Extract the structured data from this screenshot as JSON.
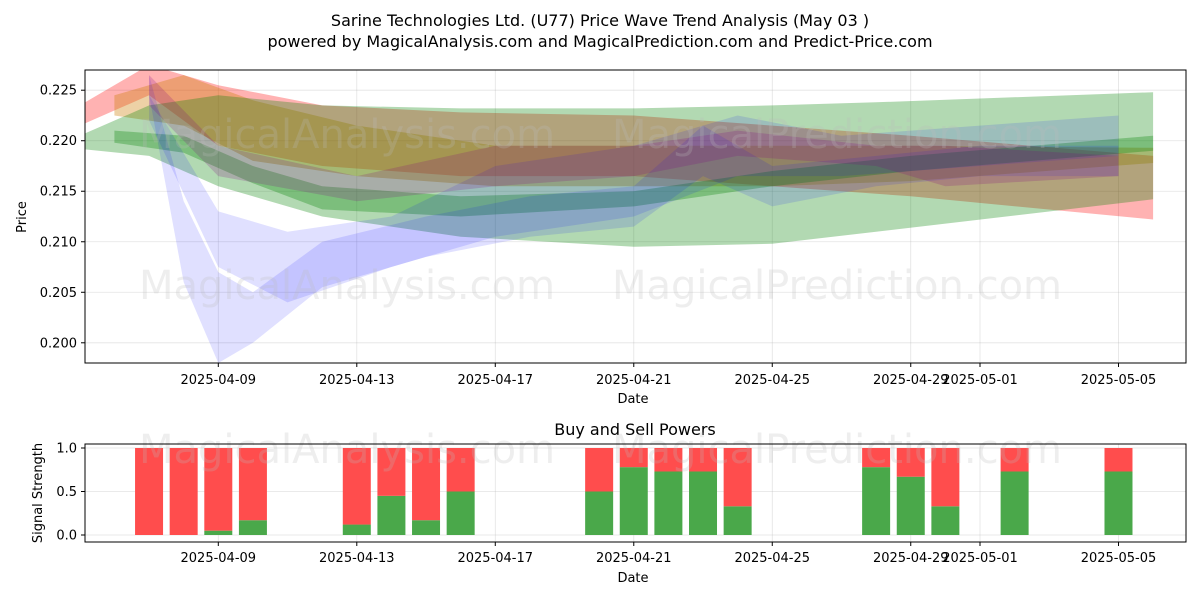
{
  "title_line1": "Sarine Technologies Ltd. (U77) Price Wave Trend Analysis (May 03 )",
  "title_line2": "powered by MagicalAnalysis.com and MagicalPrediction.com and Predict-Price.com",
  "watermarks": [
    "MagicalAnalysis.com",
    "MagicalPrediction.com"
  ],
  "colors": {
    "red": "#ff0000",
    "green": "#008000",
    "blue": "#0000ff",
    "purple": "#800080",
    "orange": "#cc7a00",
    "buy": "#4aa84a",
    "sell": "#ff4d4d"
  },
  "chart_data": [
    {
      "type": "area",
      "title": "",
      "xlabel": "Date",
      "ylabel": "Price",
      "xlim": [
        "2025-04-05",
        "2025-05-07"
      ],
      "ylim": [
        0.198,
        0.227
      ],
      "xticks": [
        "2025-04-09",
        "2025-04-13",
        "2025-04-17",
        "2025-04-21",
        "2025-04-25",
        "2025-04-29",
        "2025-05-01",
        "2025-05-05"
      ],
      "yticks": [
        0.2,
        0.205,
        0.21,
        0.215,
        0.22,
        0.225
      ],
      "ytick_labels": [
        "0.200",
        "0.205",
        "0.210",
        "0.215",
        "0.220",
        "0.225"
      ],
      "grid": true,
      "series": [
        {
          "color": "red",
          "x": [
            "2025-04-05",
            "2025-04-07",
            "2025-04-09",
            "2025-04-12",
            "2025-04-16",
            "2025-04-21",
            "2025-04-25",
            "2025-04-29",
            "2025-05-06"
          ],
          "upper": [
            0.2235,
            0.2275,
            0.2255,
            0.2235,
            0.2228,
            0.2225,
            0.2215,
            0.2205,
            0.2185
          ],
          "lower": [
            0.2215,
            0.2245,
            0.2195,
            0.2175,
            0.2165,
            0.2165,
            0.2155,
            0.2145,
            0.2122
          ]
        },
        {
          "color": "orange",
          "x": [
            "2025-04-06",
            "2025-04-08",
            "2025-04-10",
            "2025-04-13",
            "2025-04-17",
            "2025-04-21",
            "2025-04-25",
            "2025-04-29",
            "2025-05-06"
          ],
          "upper": [
            0.2245,
            0.2265,
            0.224,
            0.2215,
            0.2195,
            0.2195,
            0.2195,
            0.2195,
            0.2193
          ],
          "lower": [
            0.2225,
            0.2215,
            0.218,
            0.2165,
            0.2155,
            0.2155,
            0.2155,
            0.216,
            0.2178
          ]
        },
        {
          "color": "green",
          "x": [
            "2025-04-05",
            "2025-04-07",
            "2025-04-09",
            "2025-04-12",
            "2025-04-16",
            "2025-04-21",
            "2025-04-25",
            "2025-04-28",
            "2025-05-06"
          ],
          "upper": [
            0.2205,
            0.2235,
            0.2245,
            0.2235,
            0.2232,
            0.2232,
            0.2235,
            0.2238,
            0.2248
          ],
          "lower": [
            0.2192,
            0.2185,
            0.2155,
            0.2125,
            0.2105,
            0.2095,
            0.2098,
            0.211,
            0.2142
          ]
        },
        {
          "color": "green",
          "x": [
            "2025-04-06",
            "2025-04-08",
            "2025-04-10",
            "2025-04-12",
            "2025-04-16",
            "2025-04-21",
            "2025-04-25",
            "2025-04-29",
            "2025-05-06"
          ],
          "upper": [
            0.221,
            0.2205,
            0.2175,
            0.2155,
            0.2145,
            0.215,
            0.217,
            0.2185,
            0.2205
          ],
          "lower": [
            0.2198,
            0.2188,
            0.2158,
            0.2132,
            0.2125,
            0.2135,
            0.2155,
            0.217,
            0.219
          ]
        },
        {
          "color": "blue",
          "x": [
            "2025-04-07",
            "2025-04-08",
            "2025-04-09",
            "2025-04-10",
            "2025-04-12",
            "2025-04-15",
            "2025-04-18",
            "2025-04-21",
            "2025-04-23",
            "2025-04-25",
            "2025-04-28",
            "2025-05-01",
            "2025-05-05"
          ],
          "upper": [
            0.2265,
            0.214,
            0.207,
            0.205,
            0.21,
            0.2125,
            0.2145,
            0.2155,
            0.2215,
            0.2175,
            0.2185,
            0.2195,
            0.2195
          ],
          "lower": [
            0.2245,
            0.206,
            0.198,
            0.2,
            0.2055,
            0.2085,
            0.2105,
            0.2115,
            0.2165,
            0.2135,
            0.2155,
            0.2165,
            0.2165
          ]
        },
        {
          "color": "blue",
          "x": [
            "2025-04-07",
            "2025-04-09",
            "2025-04-11",
            "2025-04-14",
            "2025-04-17",
            "2025-04-21",
            "2025-04-24",
            "2025-04-27",
            "2025-05-01",
            "2025-05-05"
          ],
          "upper": [
            0.2245,
            0.213,
            0.211,
            0.2125,
            0.2175,
            0.2195,
            0.2225,
            0.2205,
            0.2215,
            0.2225
          ],
          "lower": [
            0.222,
            0.2075,
            0.204,
            0.2075,
            0.2105,
            0.2125,
            0.2165,
            0.2165,
            0.2175,
            0.2185
          ]
        },
        {
          "color": "purple",
          "x": [
            "2025-04-07",
            "2025-04-09",
            "2025-04-13",
            "2025-04-17",
            "2025-04-21",
            "2025-04-24",
            "2025-04-28",
            "2025-04-30",
            "2025-05-05"
          ],
          "upper": [
            0.2265,
            0.2195,
            0.2165,
            0.2195,
            0.2195,
            0.221,
            0.2195,
            0.2195,
            0.2185
          ],
          "lower": [
            0.2235,
            0.2165,
            0.214,
            0.2155,
            0.2165,
            0.2185,
            0.2175,
            0.2155,
            0.2165
          ]
        }
      ]
    },
    {
      "type": "bar",
      "title": "Buy and Sell Powers",
      "xlabel": "Date",
      "ylabel": "Signal Strength",
      "ylim": [
        0,
        1.05
      ],
      "yticks": [
        0.0,
        0.5,
        1.0
      ],
      "ytick_labels": [
        "0.0",
        "0.5",
        "1.0"
      ],
      "xticks": [
        "2025-04-09",
        "2025-04-13",
        "2025-04-17",
        "2025-04-21",
        "2025-04-25",
        "2025-04-29",
        "2025-05-01",
        "2025-05-05"
      ],
      "grid": true,
      "categories": [
        "2025-04-07",
        "2025-04-08",
        "2025-04-09",
        "2025-04-10",
        "2025-04-13",
        "2025-04-14",
        "2025-04-15",
        "2025-04-16",
        "2025-04-20",
        "2025-04-21",
        "2025-04-22",
        "2025-04-23",
        "2025-04-24",
        "2025-04-28",
        "2025-04-29",
        "2025-04-30",
        "2025-05-02",
        "2025-05-05"
      ],
      "series": [
        {
          "name": "Buy",
          "color": "buy",
          "values": [
            0.0,
            0.0,
            0.05,
            0.17,
            0.12,
            0.45,
            0.17,
            0.5,
            0.5,
            0.78,
            0.73,
            0.73,
            0.33,
            0.78,
            0.67,
            0.33,
            0.73,
            0.73
          ]
        },
        {
          "name": "Sell",
          "color": "sell",
          "values": [
            1.0,
            1.0,
            0.95,
            0.83,
            0.88,
            0.55,
            0.83,
            0.5,
            0.5,
            0.22,
            0.27,
            0.27,
            0.67,
            0.22,
            0.33,
            0.67,
            0.27,
            0.27
          ]
        }
      ]
    }
  ]
}
